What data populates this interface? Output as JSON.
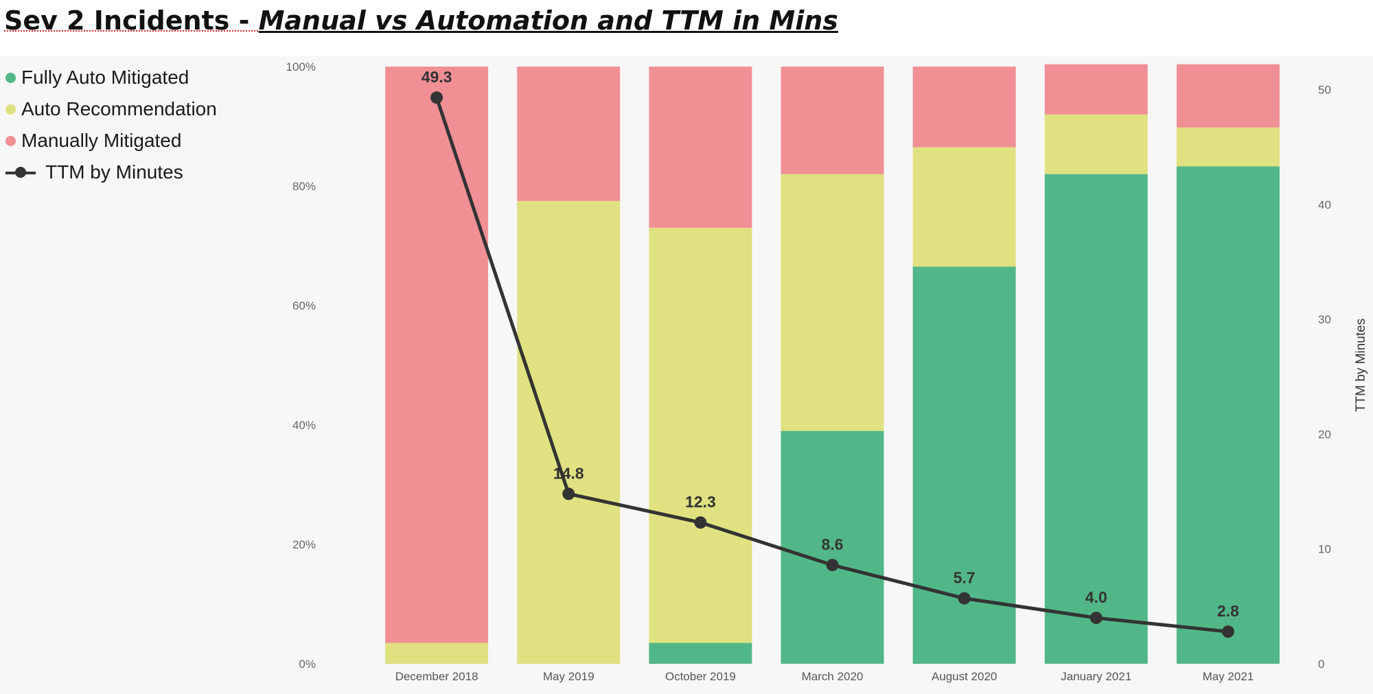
{
  "title": {
    "part1": "Sev 2 Incidents - ",
    "part2": "Manual vs Automation and TTM in Mins"
  },
  "legend": [
    {
      "label": "Fully Auto Mitigated",
      "color": "#52b788"
    },
    {
      "label": "Auto Recommendation",
      "color": "#e0e180"
    },
    {
      "label": "Manually Mitigated",
      "color": "#f09095"
    },
    {
      "label": "TTM by Minutes",
      "color": "#333333"
    }
  ],
  "chart_data": {
    "type": "bar",
    "stacked": "100%",
    "categories": [
      "December 2018",
      "May 2019",
      "October 2019",
      "March 2020",
      "August 2020",
      "January 2021",
      "May 2021"
    ],
    "series": [
      {
        "name": "Fully Auto Mitigated",
        "color": "#52b788",
        "values": [
          0,
          0,
          3.5,
          39,
          66.5,
          82,
          83.3
        ]
      },
      {
        "name": "Auto Recommendation",
        "color": "#e0e180",
        "values": [
          3.5,
          77.5,
          69.5,
          43,
          20,
          10,
          6.5
        ]
      },
      {
        "name": "Manually Mitigated",
        "color": "#f09095",
        "values": [
          96.5,
          22.5,
          27,
          18,
          13.5,
          8.4,
          10.6
        ]
      }
    ],
    "line_series": {
      "name": "TTM by Minutes",
      "color": "#333333",
      "values": [
        49.3,
        14.8,
        12.3,
        8.6,
        5.7,
        4.0,
        2.8
      ],
      "labels": [
        "49.3",
        "14.8",
        "12.3",
        "8.6",
        "5.7",
        "4.0",
        "2.8"
      ]
    },
    "y_left": {
      "ylim": [
        0,
        100
      ],
      "ticks": [
        "0%",
        "20%",
        "40%",
        "60%",
        "80%",
        "100%"
      ]
    },
    "y_right": {
      "label": "TTM by Minutes",
      "ylim": [
        0,
        52
      ],
      "ticks": [
        "0",
        "10",
        "20",
        "30",
        "40",
        "50"
      ],
      "tick_values": [
        0,
        10,
        20,
        30,
        40,
        50
      ]
    },
    "legend_position": "top-left",
    "grid": false
  }
}
